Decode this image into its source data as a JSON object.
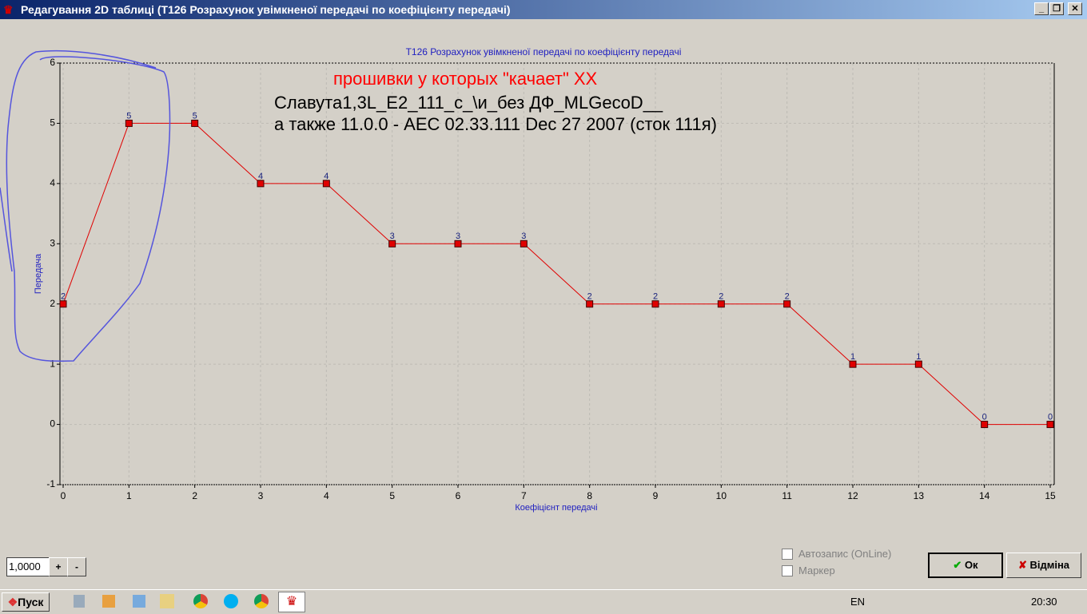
{
  "window": {
    "title": "Редагування 2D таблиці (T126 Розрахунок увімкненої передачі по коефіцієнту передачі)"
  },
  "chart_data": {
    "type": "line",
    "title": "T126 Розрахунок увімкненої передачі по коефіцієнту передачі",
    "x_label": "Коефіцієнт передачі",
    "y_label": "Передача",
    "x": [
      0,
      1,
      2,
      3,
      4,
      5,
      6,
      7,
      8,
      9,
      10,
      11,
      12,
      13,
      14,
      15
    ],
    "values": [
      2,
      5,
      5,
      4,
      4,
      3,
      3,
      3,
      2,
      2,
      2,
      2,
      1,
      1,
      0,
      0
    ],
    "color": "#e00000",
    "marker_color": "#e00000",
    "label_color": "#1a237e",
    "data_labels": true,
    "xlim": [
      0,
      15
    ],
    "xticks": [
      0,
      1,
      2,
      3,
      4,
      5,
      6,
      7,
      8,
      9,
      10,
      11,
      12,
      13,
      14,
      15
    ],
    "ylim": [
      -1,
      6
    ],
    "yticks": [
      -1,
      0,
      1,
      2,
      3,
      4,
      5,
      6
    ],
    "grid": true,
    "annotations": [
      {
        "text": "прошивки у которых \"качает\" ХХ",
        "color": "#ff0000"
      },
      {
        "text": "Славута1,3L_E2_111_c_\\и_без ДФ_MLGecoD__",
        "color": "#000000"
      },
      {
        "text": "а также 11.0.0 - AEC 02.33.111  Dec 27 2007 (сток 111я)",
        "color": "#000000"
      }
    ]
  },
  "controls": {
    "step": "1,0000",
    "plus": "+",
    "minus": "-",
    "autosave": "Автозапис (OnLine)",
    "marker": "Маркер",
    "ok": "Ок",
    "cancel": "Відміна"
  },
  "taskbar": {
    "start": "Пуск",
    "language": "EN",
    "clock": "20:30"
  }
}
